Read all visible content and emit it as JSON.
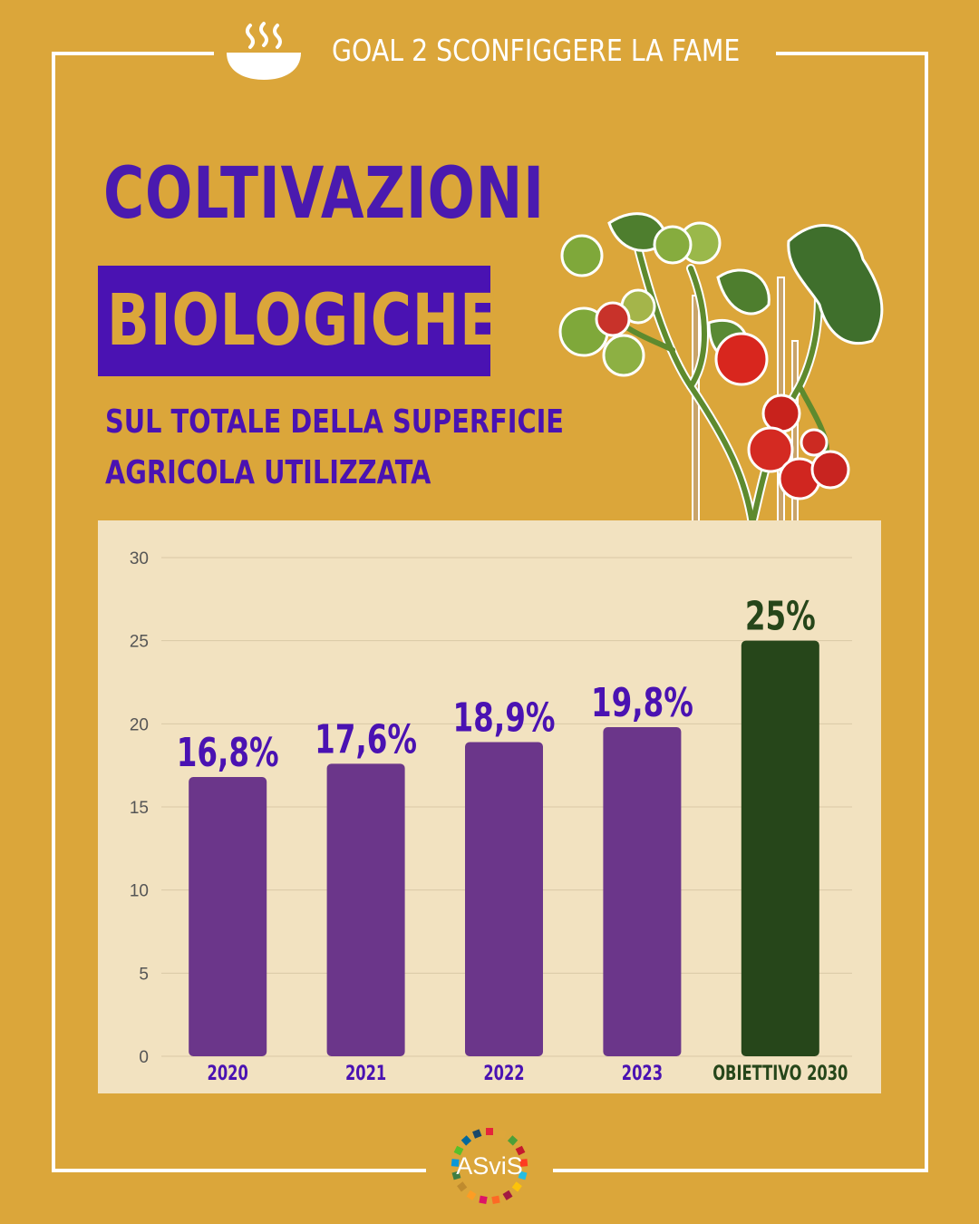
{
  "header": {
    "goal_label": "GOAL 2 SCONFIGGERE LA FAME",
    "goal_icon": "bowl-icon"
  },
  "title": {
    "line1": "COLTIVAZIONI",
    "line2": "BIOLOGICHE",
    "subtitle_line1": "SUL TOTALE DELLA SUPERFICIE",
    "subtitle_line2": "AGRICOLA UTILIZZATA"
  },
  "illustration": {
    "icon": "tomato-plant-icon"
  },
  "colors": {
    "background": "#DBA63A",
    "title_purple": "#4A12B2",
    "bar_purple": "#6B368A",
    "bar_target": "#26461A",
    "label_purple": "#4A12B2",
    "label_target": "#26461A",
    "chart_panel": "#F2E2C0"
  },
  "chart_data": {
    "type": "bar",
    "categories": [
      "2020",
      "2021",
      "2022",
      "2023",
      "OBIETTIVO 2030"
    ],
    "values": [
      16.8,
      17.6,
      18.9,
      19.8,
      25
    ],
    "data_labels": [
      "16,8%",
      "17,6%",
      "18,9%",
      "19,8%",
      "25%"
    ],
    "highlight_category": "OBIETTIVO 2030",
    "ylim": [
      0,
      30
    ],
    "yticks": [
      0,
      5,
      10,
      15,
      20,
      25,
      30
    ],
    "grid": true,
    "title": "",
    "xlabel": "",
    "ylabel": ""
  },
  "footer": {
    "logo_text": "ASviS"
  }
}
